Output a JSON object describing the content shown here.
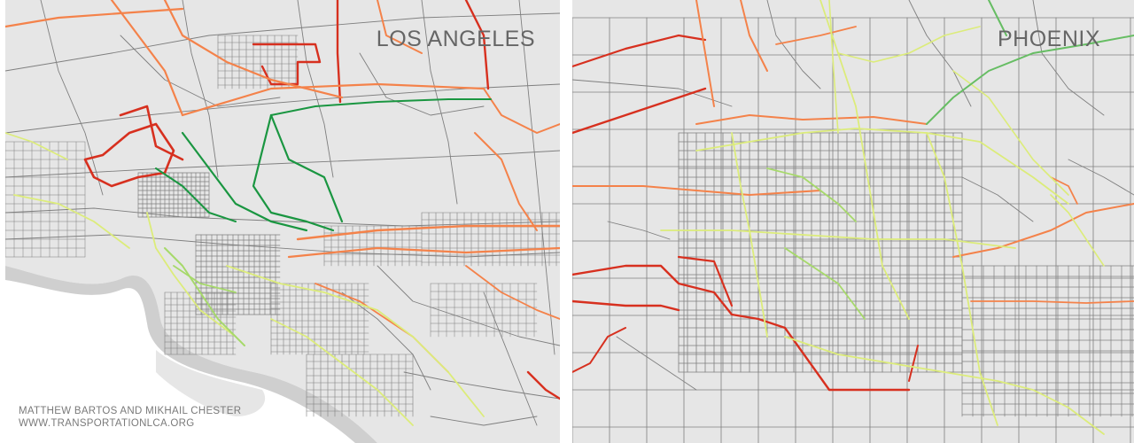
{
  "maps": [
    {
      "id": "la",
      "title": "LOS ANGELES"
    },
    {
      "id": "phx",
      "title": "PHOENIX"
    }
  ],
  "credits": {
    "line1": "MATTHEW BARTOS AND MIKHAIL CHESTER",
    "line2": "WWW.TRANSPORTATIONLCA.ORG"
  },
  "colors": {
    "land": "#e6e6e6",
    "ocean": "#ffffff",
    "coast_buffer": "#cfcfcf",
    "road": "#7f7f7f",
    "red": "#d7301f",
    "orange": "#f4824a",
    "light_orange": "#f9a36a",
    "yellow_green": "#dcec7a",
    "light_green": "#a6d96a",
    "green": "#1a9641",
    "mid_green": "#66bd63",
    "text": "#666666"
  }
}
